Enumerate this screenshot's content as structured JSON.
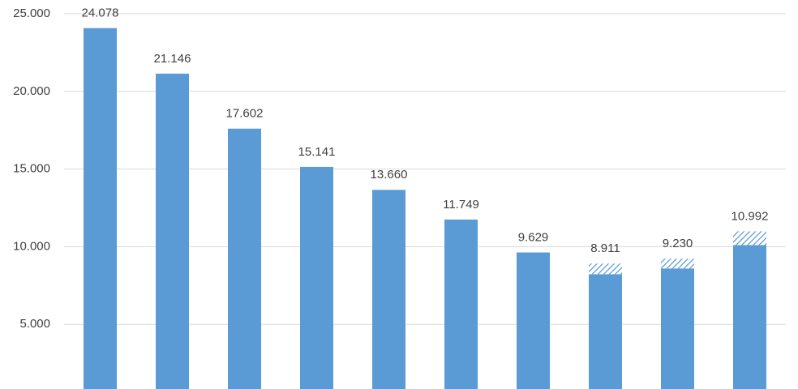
{
  "chart_data": {
    "type": "bar",
    "categories": [
      null,
      null,
      null,
      null,
      null,
      null,
      null,
      null,
      null,
      null
    ],
    "values": [
      24078,
      21146,
      17602,
      15141,
      13660,
      11749,
      9629,
      8911,
      9230,
      10992
    ],
    "value_labels": [
      "24.078",
      "21.146",
      "17.602",
      "15.141",
      "13.660",
      "11.749",
      "9.629",
      "8.911",
      "9.230",
      "10.992"
    ],
    "hatched_values": [
      null,
      null,
      null,
      null,
      null,
      null,
      null,
      680,
      630,
      890
    ],
    "color": "#5b9bd5",
    "ylim": [
      0,
      25000
    ],
    "yticks": [
      {
        "value": 5000,
        "label": "5.000"
      },
      {
        "value": 10000,
        "label": "10.000"
      },
      {
        "value": 15000,
        "label": "15.000"
      },
      {
        "value": 20000,
        "label": "20.000"
      },
      {
        "value": 25000,
        "label": "25.000"
      }
    ],
    "grid": true
  }
}
